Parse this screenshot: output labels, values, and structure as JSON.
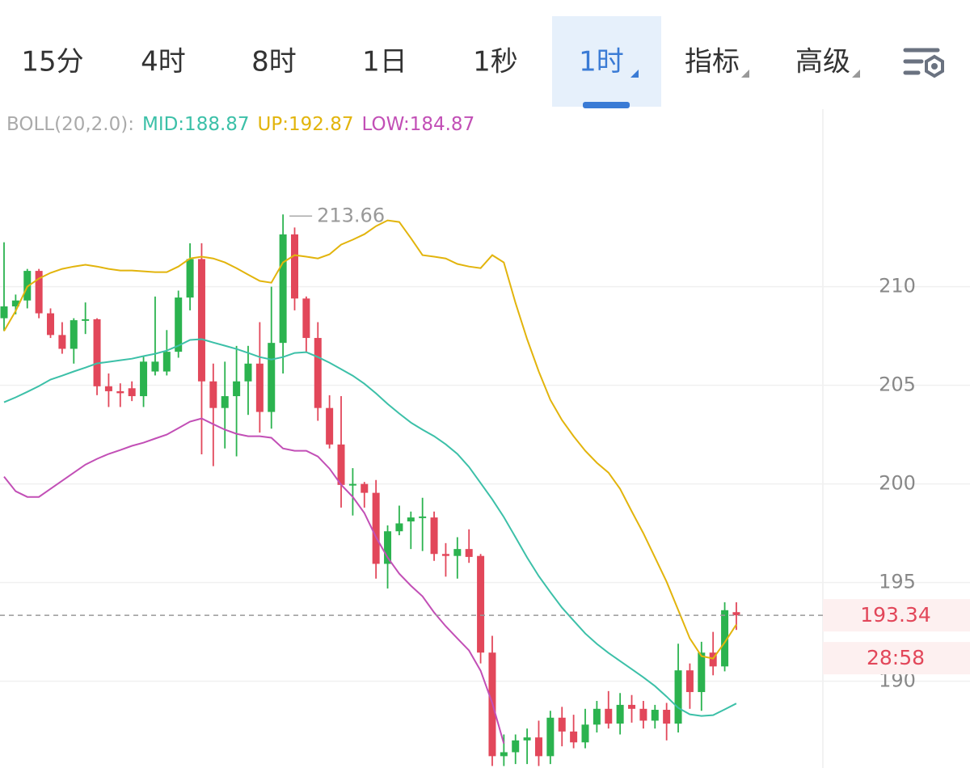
{
  "tabs": [
    {
      "label": "15分"
    },
    {
      "label": "4时"
    },
    {
      "label": "8时"
    },
    {
      "label": "1日"
    },
    {
      "label": "1秒"
    },
    {
      "label": "1时",
      "active": true,
      "dropdown": true
    },
    {
      "label": "指标",
      "dropdown": true
    },
    {
      "label": "高级",
      "dropdown": true
    }
  ],
  "chart_data": {
    "type": "candlestick",
    "indicator_legend": [
      "BOLL(20,2.0):",
      "MID:188.87",
      "UP:192.87",
      "LOW:184.87"
    ],
    "legend_colors": [
      "#aaaaaa",
      "#3cc0a8",
      "#e2b40c",
      "#c24fb6"
    ],
    "up_color": "#2bb34f",
    "down_color": "#e2475a",
    "candles": {
      "open": [
        208.4,
        209.0,
        209.3,
        210.8,
        208.65,
        207.55,
        206.85,
        208.3,
        208.35,
        204.95,
        204.7,
        204.85,
        204.45,
        205.7,
        205.7,
        206.7,
        209.45,
        211.4,
        205.2,
        203.85,
        204.45,
        205.2,
        206.1,
        203.65,
        207.15,
        212.65,
        209.4,
        207.4,
        203.85,
        202.0,
        199.95,
        200.0,
        199.55,
        195.95,
        197.6,
        198.1,
        198.3,
        198.3,
        196.45,
        196.35,
        196.7,
        196.35,
        191.45,
        186.2,
        186.4,
        187.0,
        187.15,
        186.2,
        188.15,
        187.45,
        186.9,
        187.8,
        188.6,
        187.85,
        188.8,
        188.6,
        188.0,
        188.55,
        187.85,
        190.55,
        189.45,
        191.45,
        190.75,
        193.5
      ],
      "high": [
        212.25,
        209.6,
        210.9,
        210.9,
        208.9,
        208.2,
        208.4,
        209.2,
        208.4,
        205.6,
        205.1,
        205.2,
        206.5,
        209.5,
        207.8,
        209.8,
        212.2,
        212.2,
        206.1,
        206.2,
        207.0,
        207.0,
        208.2,
        210.0,
        213.66,
        213.0,
        209.5,
        208.2,
        204.5,
        204.45,
        200.8,
        200.1,
        200.2,
        197.9,
        198.9,
        198.6,
        199.3,
        198.6,
        197.0,
        197.3,
        197.7,
        196.45,
        192.3,
        187.3,
        187.3,
        187.6,
        188.0,
        188.5,
        188.7,
        188.3,
        188.6,
        189.0,
        189.5,
        189.4,
        189.3,
        189.0,
        188.8,
        188.9,
        191.9,
        190.9,
        192.0,
        192.5,
        194.0,
        194.0
      ],
      "low": [
        207.75,
        208.6,
        208.9,
        208.4,
        207.4,
        206.6,
        206.1,
        207.6,
        204.5,
        203.9,
        203.9,
        204.2,
        203.9,
        205.5,
        205.5,
        206.4,
        208.8,
        201.5,
        200.9,
        201.8,
        201.4,
        203.5,
        202.6,
        202.8,
        205.6,
        208.8,
        206.7,
        203.2,
        201.8,
        198.8,
        198.4,
        198.8,
        195.2,
        194.7,
        197.4,
        196.7,
        196.6,
        196.1,
        195.3,
        195.2,
        196.0,
        190.9,
        185.7,
        185.7,
        185.8,
        185.8,
        185.7,
        185.8,
        186.7,
        186.6,
        186.6,
        187.4,
        187.6,
        187.3,
        187.9,
        187.6,
        187.6,
        187.0,
        187.4,
        188.6,
        188.5,
        190.3,
        190.5,
        192.6
      ],
      "close": [
        209.0,
        209.3,
        210.8,
        208.65,
        207.55,
        206.85,
        208.3,
        208.35,
        204.95,
        204.7,
        204.6,
        204.45,
        206.2,
        206.2,
        206.7,
        209.45,
        211.4,
        205.2,
        203.85,
        204.45,
        205.2,
        206.1,
        203.65,
        207.15,
        212.65,
        209.4,
        207.4,
        203.85,
        202.0,
        199.95,
        200.0,
        199.55,
        195.95,
        197.6,
        198.0,
        198.3,
        198.35,
        196.45,
        196.35,
        196.7,
        196.3,
        191.45,
        186.2,
        186.4,
        187.0,
        187.15,
        186.2,
        188.15,
        187.45,
        186.9,
        187.8,
        188.6,
        187.85,
        188.8,
        188.6,
        188.0,
        188.55,
        187.85,
        190.55,
        189.45,
        191.45,
        190.75,
        193.6,
        193.34
      ]
    },
    "series": [
      {
        "color": "#3cc0a8",
        "values": [
          204.14,
          204.39,
          204.67,
          204.96,
          205.29,
          205.49,
          205.7,
          205.9,
          206.11,
          206.19,
          206.27,
          206.35,
          206.48,
          206.6,
          206.76,
          207.01,
          207.3,
          207.34,
          207.17,
          207.01,
          206.84,
          206.64,
          206.43,
          206.31,
          206.43,
          206.64,
          206.68,
          206.43,
          206.15,
          205.82,
          205.49,
          205.08,
          204.59,
          204.06,
          203.57,
          203.11,
          202.75,
          202.42,
          202.01,
          201.52,
          200.86,
          200.04,
          199.22,
          198.32,
          197.3,
          196.27,
          195.33,
          194.51,
          193.73,
          193.07,
          192.42,
          191.89,
          191.43,
          191.02,
          190.61,
          190.2,
          189.75,
          189.22,
          188.65,
          188.32,
          188.24,
          188.28,
          188.57,
          188.87
        ]
      },
      {
        "color": "#e2b40c",
        "values": [
          207.75,
          208.77,
          210.0,
          210.41,
          210.7,
          210.9,
          211.02,
          211.11,
          211.02,
          210.9,
          210.82,
          210.82,
          210.78,
          210.74,
          210.74,
          211.02,
          211.43,
          211.52,
          211.43,
          211.23,
          210.94,
          210.61,
          210.29,
          210.2,
          211.23,
          211.6,
          211.52,
          211.43,
          211.64,
          212.13,
          212.38,
          212.66,
          213.07,
          213.36,
          213.28,
          212.46,
          211.6,
          211.52,
          211.43,
          211.15,
          211.02,
          210.94,
          211.6,
          211.23,
          209.18,
          207.34,
          205.7,
          204.26,
          203.24,
          202.42,
          201.68,
          201.07,
          200.57,
          199.75,
          198.61,
          197.5,
          196.27,
          195.04,
          193.61,
          192.17,
          191.27,
          191.15,
          191.97,
          192.87
        ]
      },
      {
        "color": "#c24fb6",
        "values": [
          200.37,
          199.63,
          199.34,
          199.34,
          199.75,
          200.16,
          200.57,
          200.98,
          201.27,
          201.52,
          201.72,
          201.93,
          202.09,
          202.3,
          202.5,
          202.83,
          203.16,
          203.32,
          203.03,
          202.75,
          202.54,
          202.42,
          202.42,
          202.34,
          201.8,
          201.68,
          201.68,
          201.39,
          200.78,
          199.96,
          199.34,
          198.52,
          197.3,
          196.27,
          195.45,
          194.84,
          194.3,
          193.48,
          192.79,
          192.17,
          191.56,
          190.53,
          188.89,
          186.84,
          null,
          null,
          null,
          null,
          null,
          null,
          null,
          null,
          null,
          null,
          null,
          null,
          null,
          null,
          null,
          null,
          null,
          null,
          null,
          null
        ]
      }
    ],
    "ylim": [
      185.6,
      219.0
    ],
    "yticks": [
      190,
      195,
      200,
      205,
      210
    ],
    "grid": true,
    "countdown": "28:58"
  }
}
